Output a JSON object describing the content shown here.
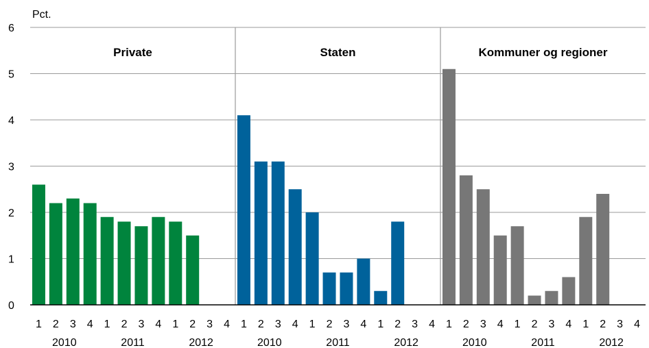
{
  "chart_data": {
    "type": "bar",
    "ylabel": "Pct.",
    "ylim": [
      0,
      6
    ],
    "yticks": [
      "0",
      "1",
      "2",
      "3",
      "4",
      "5",
      "6"
    ],
    "grid": "horizontal",
    "quarter_labels": [
      "1",
      "2",
      "3",
      "4",
      "1",
      "2",
      "3",
      "4",
      "1",
      "2",
      "3",
      "4"
    ],
    "year_labels": [
      "2010",
      "2011",
      "2012"
    ],
    "panels": [
      {
        "title": "Private",
        "color": "#00843d",
        "values": [
          2.6,
          2.2,
          2.3,
          2.2,
          1.9,
          1.8,
          1.7,
          1.9,
          1.8,
          1.5,
          null,
          null
        ]
      },
      {
        "title": "Staten",
        "color": "#00629b",
        "values": [
          4.1,
          3.1,
          3.1,
          2.5,
          2.0,
          0.7,
          0.7,
          1.0,
          0.3,
          1.8,
          null,
          null
        ]
      },
      {
        "title": "Kommuner og regioner",
        "color": "#777777",
        "values": [
          5.1,
          2.8,
          2.5,
          1.5,
          1.7,
          0.2,
          0.3,
          0.6,
          1.9,
          2.4,
          null,
          null
        ]
      }
    ]
  }
}
